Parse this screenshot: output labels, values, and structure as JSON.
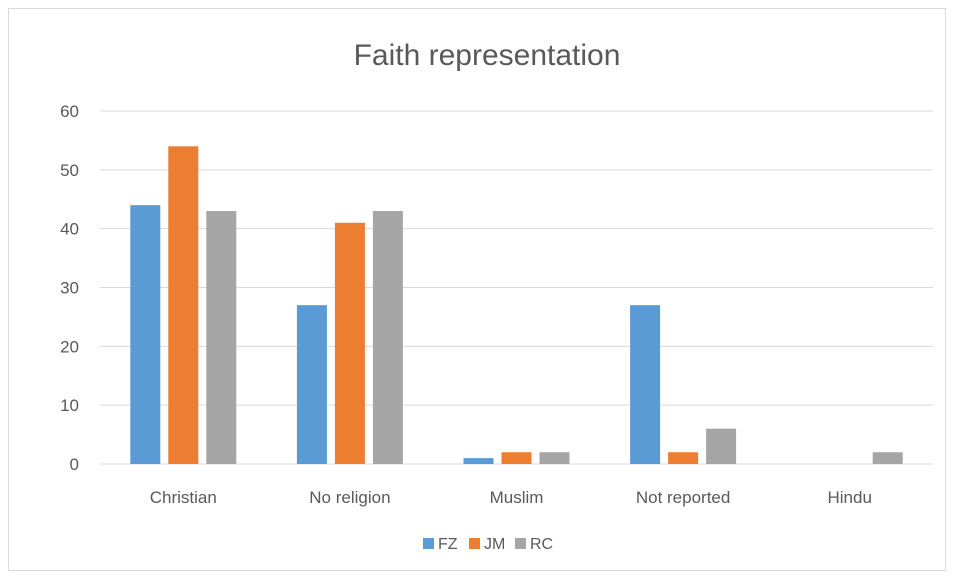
{
  "chart_data": {
    "type": "bar",
    "title": "Faith representation",
    "categories": [
      "Christian",
      "No religion",
      "Muslim",
      "Not reported",
      "Hindu"
    ],
    "series": [
      {
        "name": "FZ",
        "values": [
          44,
          27,
          1,
          27,
          0
        ],
        "color": "#5b9bd5"
      },
      {
        "name": "JM",
        "values": [
          54,
          41,
          2,
          2,
          0
        ],
        "color": "#ed7d31"
      },
      {
        "name": "RC",
        "values": [
          43,
          43,
          2,
          6,
          2
        ],
        "color": "#a5a5a5"
      }
    ],
    "ylim": [
      0,
      60
    ],
    "yticks": [
      0,
      10,
      20,
      30,
      40,
      50,
      60
    ],
    "grid": true,
    "legend": "bottom",
    "gridline_color": "#d9d9d9",
    "text_color": "#595959"
  }
}
